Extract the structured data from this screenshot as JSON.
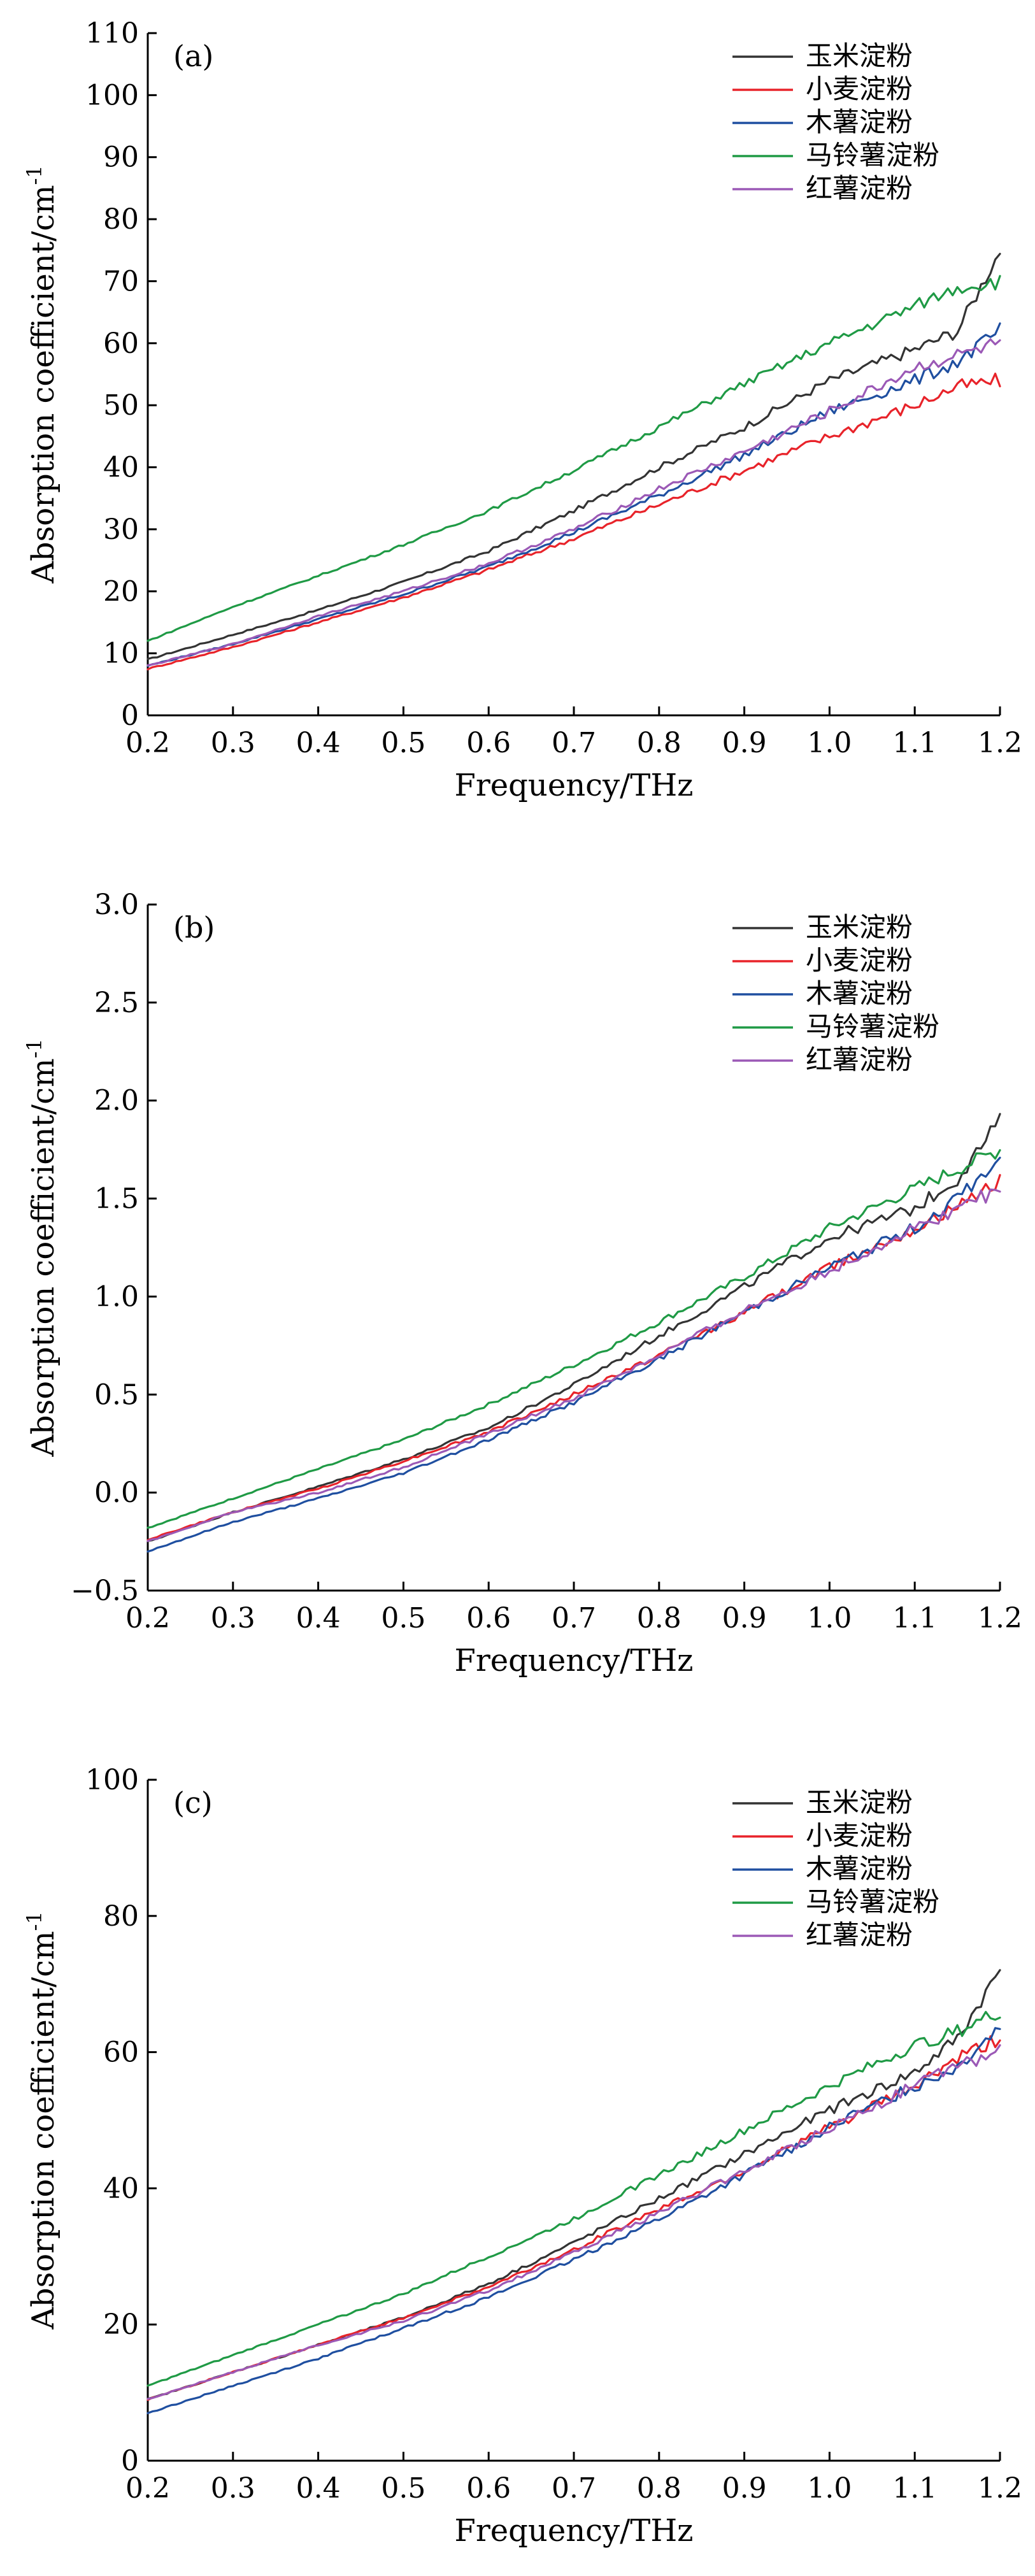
{
  "series_styles": [
    {
      "name": "玉米淀粉",
      "color": "#333333"
    },
    {
      "name": "小麦淀粉",
      "color": "#e8232a"
    },
    {
      "name": "木薯淀粉",
      "color": "#1f4fa0"
    },
    {
      "name": "马铃薯淀粉",
      "color": "#1f9a45"
    },
    {
      "name": "红薯淀粉",
      "color": "#9b59b6"
    }
  ],
  "chart_data": [
    {
      "type": "line",
      "panel_label": "(a)",
      "title": "",
      "xlabel": "Frequency/THz",
      "ylabel": "Absorption coefficient/cm",
      "ylabel_sup": "-1",
      "xlim": [
        0.2,
        1.2
      ],
      "ylim": [
        0,
        110
      ],
      "xticks": [
        0.2,
        0.3,
        0.4,
        0.5,
        0.6,
        0.7,
        0.8,
        0.9,
        1.0,
        1.1,
        1.2
      ],
      "xtick_labels": [
        "0.2",
        "0.3",
        "0.4",
        "0.5",
        "0.6",
        "0.7",
        "0.8",
        "0.9",
        "1.0",
        "1.1",
        "1.2"
      ],
      "yticks": [
        0,
        10,
        20,
        30,
        40,
        50,
        60,
        70,
        80,
        90,
        100,
        110
      ],
      "ytick_labels": [
        "0",
        "10",
        "20",
        "30",
        "40",
        "50",
        "60",
        "70",
        "80",
        "90",
        "100",
        "110"
      ],
      "grid": false,
      "legend": "top-right",
      "x": [
        0.2,
        0.3,
        0.4,
        0.5,
        0.6,
        0.7,
        0.8,
        0.9,
        1.0,
        1.1,
        1.15,
        1.2
      ],
      "series": [
        {
          "name": "玉米淀粉",
          "values": [
            9,
            13,
            17,
            21.5,
            26.5,
            33,
            40,
            46.5,
            54,
            59,
            62,
            75
          ]
        },
        {
          "name": "小麦淀粉",
          "values": [
            7.5,
            11,
            15,
            19,
            23.5,
            28.5,
            34,
            39.5,
            45,
            50,
            53,
            54
          ]
        },
        {
          "name": "木薯淀粉",
          "values": [
            8,
            11.5,
            15.5,
            19.5,
            24,
            29.5,
            35.5,
            42,
            49,
            54,
            57,
            62
          ]
        },
        {
          "name": "马铃薯淀粉",
          "values": [
            12,
            17.5,
            22.5,
            27.5,
            33,
            39.5,
            46.5,
            53.5,
            60,
            66,
            69,
            70
          ]
        },
        {
          "name": "红薯淀粉",
          "values": [
            8,
            11.5,
            16,
            20,
            24.5,
            30,
            36.5,
            42.5,
            49,
            56,
            58,
            60
          ]
        }
      ]
    },
    {
      "type": "line",
      "panel_label": "(b)",
      "title": "",
      "xlabel": "Frequency/THz",
      "ylabel": "Absorption coefficient/cm",
      "ylabel_sup": "-1",
      "xlim": [
        0.2,
        1.2
      ],
      "ylim": [
        -0.5,
        3.0
      ],
      "xticks": [
        0.2,
        0.3,
        0.4,
        0.5,
        0.6,
        0.7,
        0.8,
        0.9,
        1.0,
        1.1,
        1.2
      ],
      "xtick_labels": [
        "0.2",
        "0.3",
        "0.4",
        "0.5",
        "0.6",
        "0.7",
        "0.8",
        "0.9",
        "1.0",
        "1.1",
        "1.2"
      ],
      "yticks": [
        -0.5,
        0.0,
        0.5,
        1.0,
        1.5,
        2.0,
        2.5,
        3.0
      ],
      "ytick_labels": [
        "−0.5",
        "0.0",
        "0.5",
        "1.0",
        "1.5",
        "2.0",
        "2.5",
        "3.0"
      ],
      "grid": false,
      "legend": "top-right",
      "x": [
        0.2,
        0.3,
        0.4,
        0.5,
        0.6,
        0.7,
        0.8,
        0.9,
        1.0,
        1.1,
        1.15,
        1.2
      ],
      "series": [
        {
          "name": "玉米淀粉",
          "values": [
            -0.25,
            -0.1,
            0.03,
            0.17,
            0.33,
            0.55,
            0.8,
            1.05,
            1.3,
            1.45,
            1.6,
            1.9
          ]
        },
        {
          "name": "小麦淀粉",
          "values": [
            -0.24,
            -0.1,
            0.02,
            0.16,
            0.31,
            0.5,
            0.7,
            0.92,
            1.15,
            1.35,
            1.45,
            1.6
          ]
        },
        {
          "name": "木薯淀粉",
          "values": [
            -0.3,
            -0.15,
            -0.03,
            0.1,
            0.27,
            0.46,
            0.68,
            0.92,
            1.15,
            1.35,
            1.5,
            1.7
          ]
        },
        {
          "name": "马铃薯淀粉",
          "values": [
            -0.18,
            -0.03,
            0.12,
            0.27,
            0.45,
            0.65,
            0.87,
            1.1,
            1.35,
            1.55,
            1.65,
            1.75
          ]
        },
        {
          "name": "红薯淀粉",
          "values": [
            -0.25,
            -0.1,
            0.0,
            0.13,
            0.3,
            0.48,
            0.7,
            0.93,
            1.13,
            1.35,
            1.45,
            1.55
          ]
        }
      ]
    },
    {
      "type": "line",
      "panel_label": "(c)",
      "title": "",
      "xlabel": "Frequency/THz",
      "ylabel": "Absorption coefficient/cm",
      "ylabel_sup": "-1",
      "xlim": [
        0.2,
        1.2
      ],
      "ylim": [
        0,
        100
      ],
      "xticks": [
        0.2,
        0.3,
        0.4,
        0.5,
        0.6,
        0.7,
        0.8,
        0.9,
        1.0,
        1.1,
        1.2
      ],
      "xtick_labels": [
        "0.2",
        "0.3",
        "0.4",
        "0.5",
        "0.6",
        "0.7",
        "0.8",
        "0.9",
        "1.0",
        "1.1",
        "1.2"
      ],
      "yticks": [
        0,
        20,
        40,
        60,
        80,
        100
      ],
      "ytick_labels": [
        "0",
        "20",
        "40",
        "60",
        "80",
        "100"
      ],
      "grid": false,
      "legend": "top-right",
      "x": [
        0.2,
        0.3,
        0.4,
        0.5,
        0.6,
        0.7,
        0.8,
        0.9,
        1.0,
        1.1,
        1.15,
        1.2
      ],
      "series": [
        {
          "name": "玉米淀粉",
          "values": [
            9,
            13,
            17,
            21,
            26,
            32,
            38.5,
            45,
            51.5,
            57,
            62,
            72
          ]
        },
        {
          "name": "小麦淀粉",
          "values": [
            9,
            13,
            17,
            21,
            25.5,
            31,
            37,
            42.5,
            49,
            55,
            59,
            62
          ]
        },
        {
          "name": "木薯淀粉",
          "values": [
            7,
            11,
            15,
            19.5,
            24,
            29.5,
            35.5,
            42,
            49,
            55,
            58,
            64
          ]
        },
        {
          "name": "马铃薯淀粉",
          "values": [
            11,
            15.5,
            20,
            24.5,
            30,
            35.5,
            42,
            48.5,
            55,
            61,
            63,
            66
          ]
        },
        {
          "name": "红薯淀粉",
          "values": [
            9,
            13,
            17,
            20.5,
            25,
            30.5,
            36.5,
            42.5,
            49,
            55,
            58,
            60
          ]
        }
      ]
    }
  ]
}
